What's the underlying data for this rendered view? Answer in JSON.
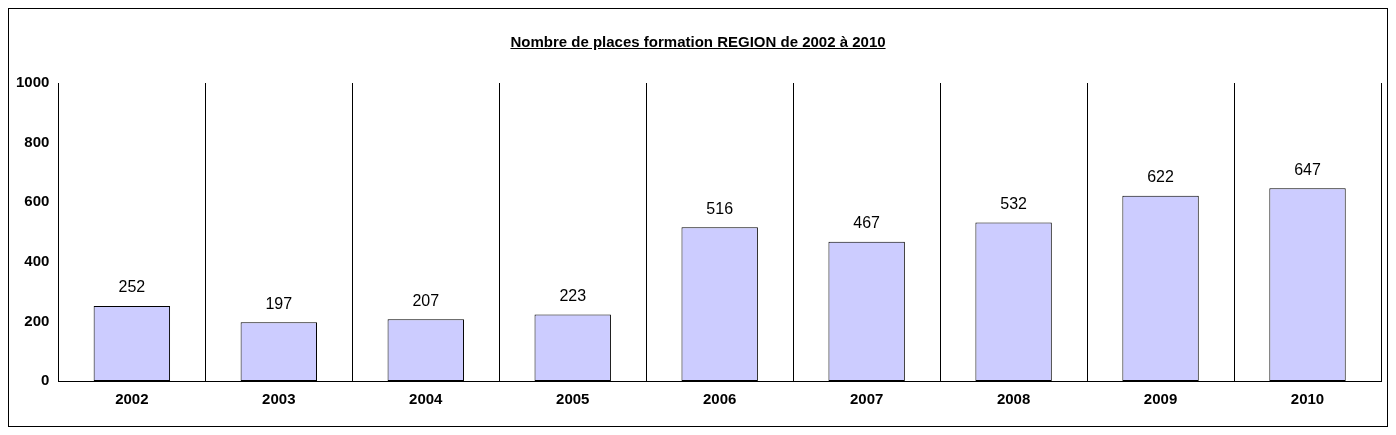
{
  "chart_data": {
    "type": "bar",
    "title": "Nombre de places formation REGION de 2002 à 2010",
    "categories": [
      "2002",
      "2003",
      "2004",
      "2005",
      "2006",
      "2007",
      "2008",
      "2009",
      "2010"
    ],
    "values": [
      252,
      197,
      207,
      223,
      516,
      467,
      532,
      622,
      647
    ],
    "color": "#ccccff",
    "ylim": [
      0,
      1000
    ],
    "yticks": [
      0,
      200,
      400,
      600,
      800,
      1000
    ],
    "grid": "x",
    "data_labels": true,
    "legend": false
  }
}
